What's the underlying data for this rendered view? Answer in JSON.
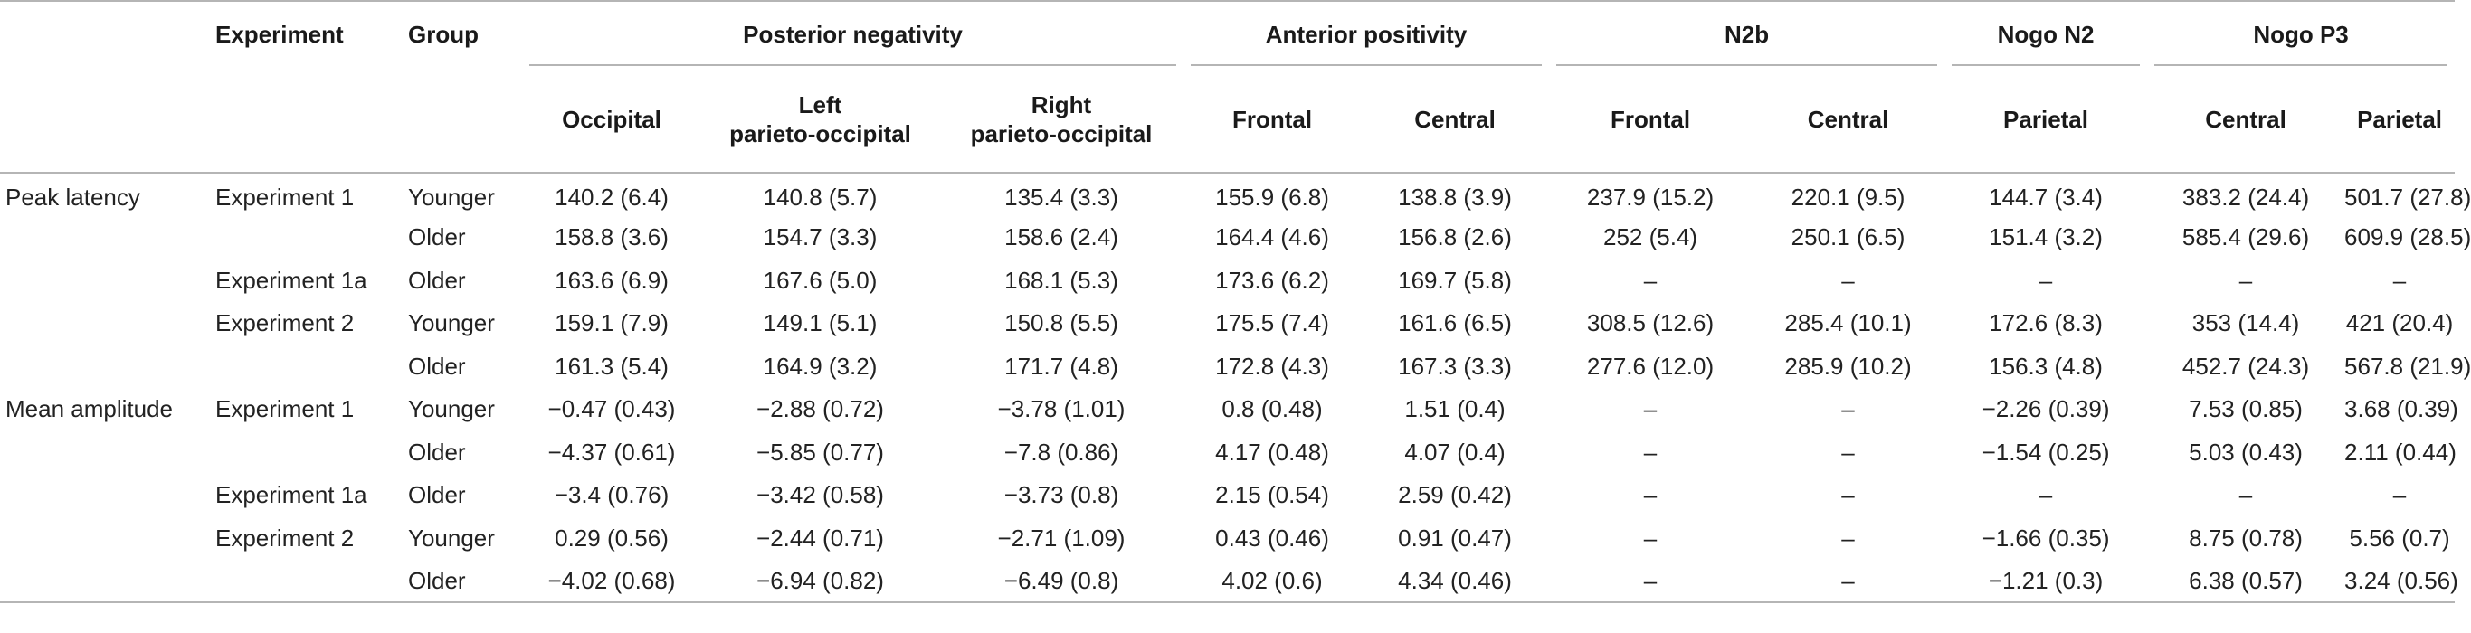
{
  "header": {
    "experiment": "Experiment",
    "group": "Group",
    "groups": [
      {
        "label": "Posterior negativity",
        "span": 3
      },
      {
        "label": "Anterior positivity",
        "span": 2
      },
      {
        "label": "N2b",
        "span": 2
      },
      {
        "label": "Nogo N2",
        "span": 1
      },
      {
        "label": "Nogo P3",
        "span": 2
      }
    ],
    "subheaders": [
      "Occipital",
      "Left\nparieto-occipital",
      "Right\nparieto-occipital",
      "Frontal",
      "Central",
      "Frontal",
      "Central",
      "Parietal",
      "Central",
      "Parietal"
    ]
  },
  "rows": [
    {
      "measure": "Peak latency",
      "experiment": "Experiment 1",
      "group": "Younger",
      "values": [
        "140.2 (6.4)",
        "140.8 (5.7)",
        "135.4 (3.3)",
        "155.9 (6.8)",
        "138.8 (3.9)",
        "237.9 (15.2)",
        "220.1 (9.5)",
        "144.7 (3.4)",
        "383.2 (24.4)",
        "501.7 (27.8)"
      ]
    },
    {
      "measure": "",
      "experiment": "",
      "group": "Older",
      "values": [
        "158.8 (3.6)",
        "154.7 (3.3)",
        "158.6 (2.4)",
        "164.4 (4.6)",
        "156.8 (2.6)",
        "252 (5.4)",
        "250.1 (6.5)",
        "151.4 (3.2)",
        "585.4 (29.6)",
        "609.9 (28.5)"
      ]
    },
    {
      "measure": "",
      "experiment": "Experiment 1a",
      "group": "Older",
      "values": [
        "163.6 (6.9)",
        "167.6 (5.0)",
        "168.1 (5.3)",
        "173.6 (6.2)",
        "169.7 (5.8)",
        "–",
        "–",
        "–",
        "–",
        "–"
      ]
    },
    {
      "measure": "",
      "experiment": "Experiment 2",
      "group": "Younger",
      "values": [
        "159.1 (7.9)",
        "149.1 (5.1)",
        "150.8 (5.5)",
        "175.5 (7.4)",
        "161.6 (6.5)",
        "308.5 (12.6)",
        "285.4 (10.1)",
        "172.6 (8.3)",
        "353 (14.4)",
        "421 (20.4)"
      ]
    },
    {
      "measure": "",
      "experiment": "",
      "group": "Older",
      "values": [
        "161.3 (5.4)",
        "164.9 (3.2)",
        "171.7 (4.8)",
        "172.8 (4.3)",
        "167.3 (3.3)",
        "277.6 (12.0)",
        "285.9 (10.2)",
        "156.3 (4.8)",
        "452.7 (24.3)",
        "567.8 (21.9)"
      ]
    },
    {
      "measure": "Mean amplitude",
      "experiment": "Experiment 1",
      "group": "Younger",
      "values": [
        "−0.47 (0.43)",
        "−2.88 (0.72)",
        "−3.78 (1.01)",
        "0.8 (0.48)",
        "1.51 (0.4)",
        "–",
        "–",
        "−2.26 (0.39)",
        "7.53 (0.85)",
        "3.68 (0.39)"
      ]
    },
    {
      "measure": "",
      "experiment": "",
      "group": "Older",
      "values": [
        "−4.37 (0.61)",
        "−5.85 (0.77)",
        "−7.8 (0.86)",
        "4.17 (0.48)",
        "4.07 (0.4)",
        "–",
        "–",
        "−1.54 (0.25)",
        "5.03 (0.43)",
        "2.11 (0.44)"
      ]
    },
    {
      "measure": "",
      "experiment": "Experiment 1a",
      "group": "Older",
      "values": [
        "−3.4 (0.76)",
        "−3.42 (0.58)",
        "−3.73 (0.8)",
        "2.15 (0.54)",
        "2.59 (0.42)",
        "–",
        "–",
        "–",
        "–",
        "–"
      ]
    },
    {
      "measure": "",
      "experiment": "Experiment 2",
      "group": "Younger",
      "values": [
        "0.29 (0.56)",
        "−2.44 (0.71)",
        "−2.71 (1.09)",
        "0.43 (0.46)",
        "0.91 (0.47)",
        "–",
        "–",
        "−1.66 (0.35)",
        "8.75 (0.78)",
        "5.56 (0.7)"
      ]
    },
    {
      "measure": "",
      "experiment": "",
      "group": "Older",
      "values": [
        "−4.02 (0.68)",
        "−6.94 (0.82)",
        "−6.49 (0.8)",
        "4.02 (0.6)",
        "4.34 (0.46)",
        "–",
        "–",
        "−1.21 (0.3)",
        "6.38 (0.57)",
        "3.24 (0.56)"
      ]
    }
  ]
}
